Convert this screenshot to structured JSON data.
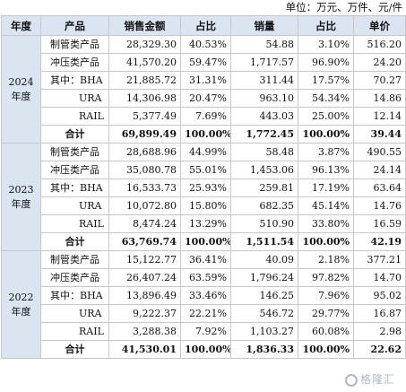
{
  "unit_note": "单位：万元、万件、元/件",
  "headers": [
    "年度",
    "产品",
    "销售金额",
    "占比",
    "销量",
    "占比",
    "单价"
  ],
  "groups": [
    {
      "year": "2024年度",
      "rows": [
        {
          "product": "制管类产品",
          "amount": "28,329.30",
          "amount_pct": "40.53%",
          "volume": "54.88",
          "volume_pct": "3.10%",
          "price": "516.20"
        },
        {
          "product": "冲压类产品",
          "amount": "41,570.20",
          "amount_pct": "59.47%",
          "volume": "1,717.57",
          "volume_pct": "96.90%",
          "price": "24.20"
        },
        {
          "product": "其中：BHA",
          "amount": "21,885.72",
          "amount_pct": "31.31%",
          "volume": "311.44",
          "volume_pct": "17.57%",
          "price": "70.27"
        },
        {
          "product": "URA",
          "amount": "14,306.98",
          "amount_pct": "20.47%",
          "volume": "963.10",
          "volume_pct": "54.34%",
          "price": "14.86"
        },
        {
          "product": "RAIL",
          "amount": "5,377.49",
          "amount_pct": "7.69%",
          "volume": "443.03",
          "volume_pct": "25.00%",
          "price": "12.14"
        }
      ],
      "total": {
        "label": "合计",
        "amount": "69,899.49",
        "amount_pct": "100.00%",
        "volume": "1,772.45",
        "volume_pct": "100.00%",
        "price": "39.44"
      }
    },
    {
      "year": "2023年度",
      "rows": [
        {
          "product": "制管类产品",
          "amount": "28,688.96",
          "amount_pct": "44.99%",
          "volume": "58.48",
          "volume_pct": "3.87%",
          "price": "490.55"
        },
        {
          "product": "冲压类产品",
          "amount": "35,080.78",
          "amount_pct": "55.01%",
          "volume": "1,453.06",
          "volume_pct": "96.13%",
          "price": "24.14"
        },
        {
          "product": "其中：BHA",
          "amount": "16,533.73",
          "amount_pct": "25.93%",
          "volume": "259.81",
          "volume_pct": "17.19%",
          "price": "63.64"
        },
        {
          "product": "URA",
          "amount": "10,072.80",
          "amount_pct": "15.80%",
          "volume": "682.35",
          "volume_pct": "45.14%",
          "price": "14.76"
        },
        {
          "product": "RAIL",
          "amount": "8,474.24",
          "amount_pct": "13.29%",
          "volume": "510.90",
          "volume_pct": "33.80%",
          "price": "16.59"
        }
      ],
      "total": {
        "label": "合计",
        "amount": "63,769.74",
        "amount_pct": "100.00%",
        "volume": "1,511.54",
        "volume_pct": "100.00%",
        "price": "42.19"
      }
    },
    {
      "year": "2022年度",
      "rows": [
        {
          "product": "制管类产品",
          "amount": "15,122.77",
          "amount_pct": "36.41%",
          "volume": "40.09",
          "volume_pct": "2.18%",
          "price": "377.21"
        },
        {
          "product": "冲压类产品",
          "amount": "26,407.24",
          "amount_pct": "63.59%",
          "volume": "1,796.24",
          "volume_pct": "97.82%",
          "price": "14.70"
        },
        {
          "product": "其中：BHA",
          "amount": "13,896.49",
          "amount_pct": "33.46%",
          "volume": "146.25",
          "volume_pct": "7.96%",
          "price": "95.02"
        },
        {
          "product": "URA",
          "amount": "9,222.37",
          "amount_pct": "22.21%",
          "volume": "546.72",
          "volume_pct": "29.77%",
          "price": "16.87"
        },
        {
          "product": "RAIL",
          "amount": "3,288.38",
          "amount_pct": "7.92%",
          "volume": "1,103.27",
          "volume_pct": "60.08%",
          "price": "2.98"
        }
      ],
      "total": {
        "label": "合计",
        "amount": "41,530.01",
        "amount_pct": "100.00%",
        "volume": "1,836.33",
        "volume_pct": "100.00%",
        "price": "22.62"
      }
    }
  ],
  "watermark": "格隆汇"
}
